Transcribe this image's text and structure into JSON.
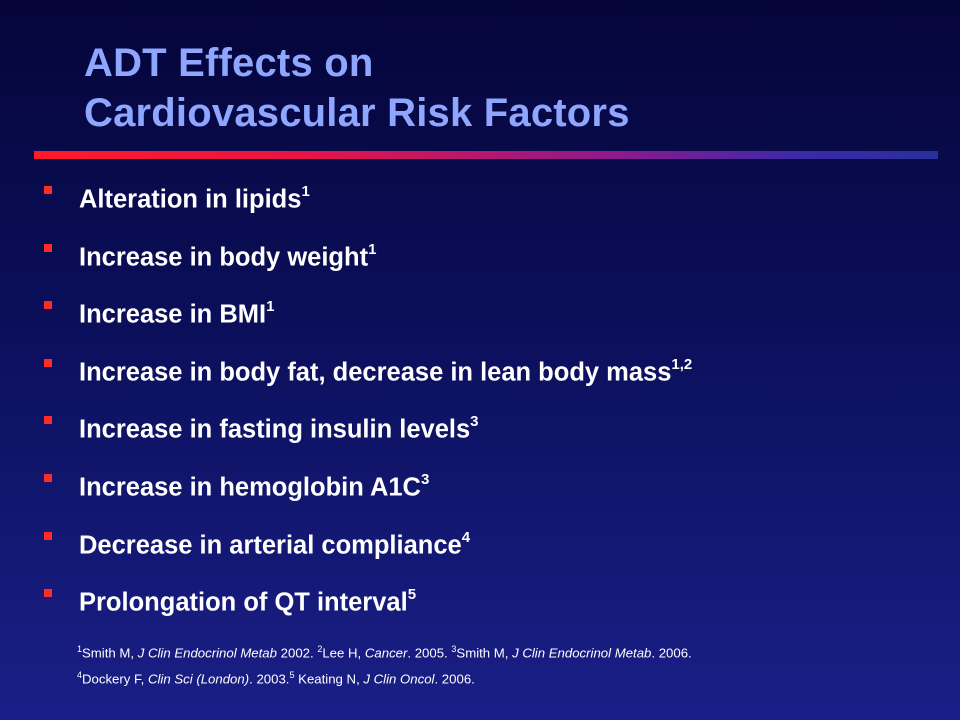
{
  "slide": {
    "title_line1": "ADT Effects on",
    "title_line2": "Cardiovascular Risk Factors",
    "bullets": [
      {
        "text": "Alteration in lipids",
        "sup": "1"
      },
      {
        "text": "Increase in body weight",
        "sup": "1"
      },
      {
        "text": "Increase in BMI",
        "sup": "1"
      },
      {
        "text": "Increase in body fat, decrease in lean body mass",
        "sup": "1,2"
      },
      {
        "text": "Increase in fasting insulin levels",
        "sup": "3"
      },
      {
        "text": "Increase in hemoglobin A1C",
        "sup": "3"
      },
      {
        "text": "Decrease in arterial compliance",
        "sup": "4"
      },
      {
        "text": "Prolongation of QT interval",
        "sup": "5"
      }
    ],
    "references": {
      "line1": {
        "r1_sup": "1",
        "r1_author": "Smith M, ",
        "r1_journal": "J Clin Endocrinol Metab",
        "r1_year": "  2002. ",
        "r2_sup": "2",
        "r2_author": "Lee H, ",
        "r2_journal": "Cancer",
        "r2_year": ". 2005. ",
        "r3_sup": "3",
        "r3_author": "Smith M, ",
        "r3_journal": "J Clin Endocrinol Metab",
        "r3_year": ". 2006."
      },
      "line2": {
        "r4_sup": "4",
        "r4_author": "Dockery F,  ",
        "r4_journal": "Clin Sci (London)",
        "r4_year": ". 2003.",
        "r5_sup": "5",
        "r5_author": " Keating N, ",
        "r5_journal": "J Clin Oncol",
        "r5_year": ". 2006."
      }
    }
  },
  "colors": {
    "title": "#8fa6ff",
    "bullet_marker": "#ff2a2a",
    "text": "#ffffff",
    "background_top": "#05053a",
    "background_bottom": "#1a1f88"
  }
}
